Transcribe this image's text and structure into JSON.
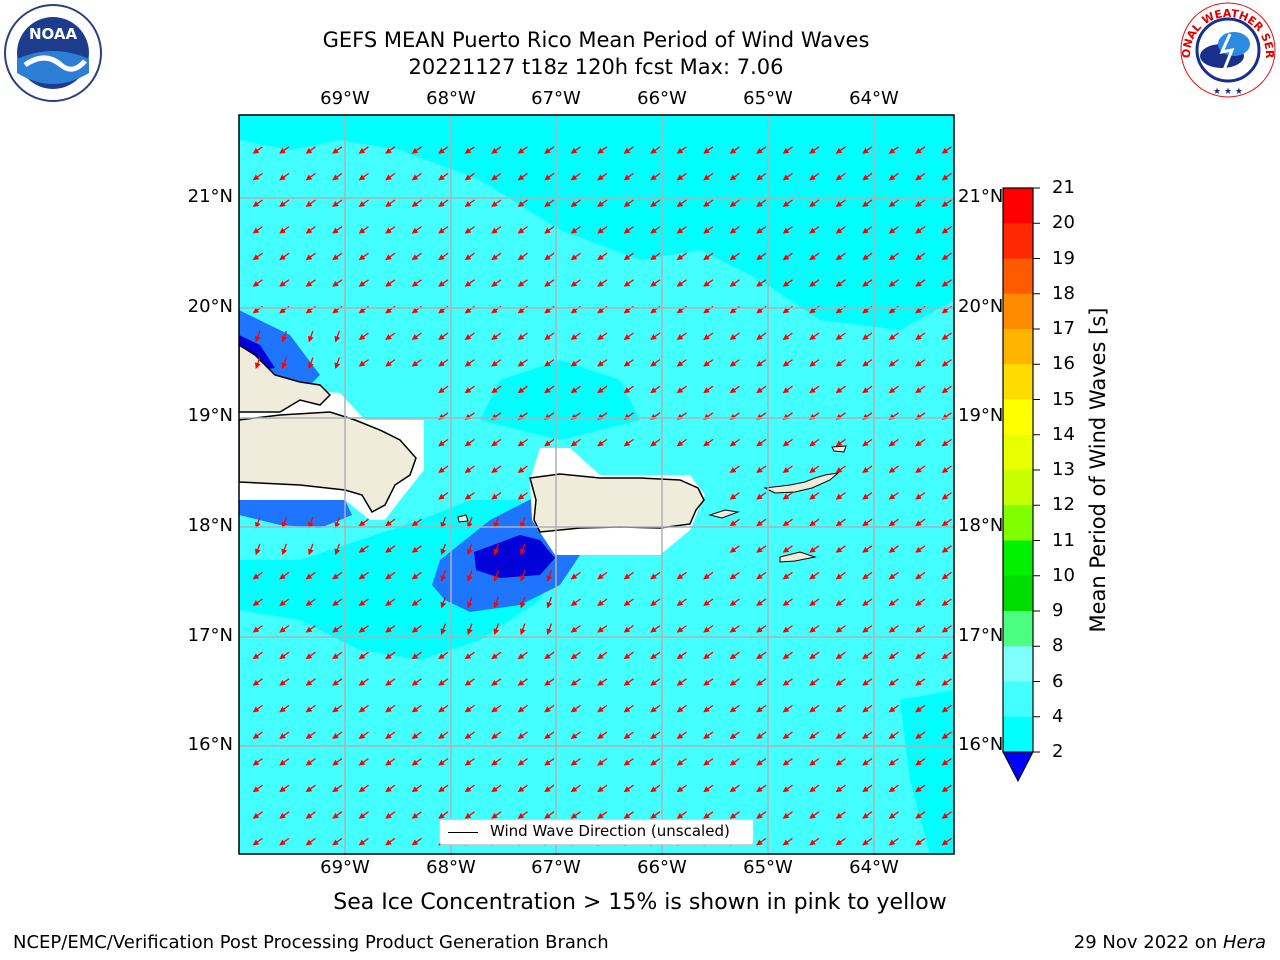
{
  "title": {
    "line1": "GEFS MEAN Puerto Rico Mean Period of Wind Waves",
    "line2": "20221127 t18z 120h fcst   Max: 7.06"
  },
  "map": {
    "lon_labels": [
      "69°W",
      "68°W",
      "67°W",
      "66°W",
      "65°W",
      "64°W"
    ],
    "lat_labels": [
      "21°N",
      "20°N",
      "19°N",
      "18°N",
      "17°N",
      "16°N"
    ],
    "arrow_color": "#ff0000",
    "land_color": "#efecdc",
    "colors": {
      "band_4_6": "#00ffff",
      "band_6_8": "#44ffff",
      "band_2_4": "#1e75ff",
      "band_below_2": "#0000d8"
    },
    "legend_label": "Wind Wave Direction (unscaled)"
  },
  "colorbar": {
    "title": "Mean Period of Wind Waves [s]",
    "ticks": [
      "21",
      "20",
      "19",
      "18",
      "17",
      "16",
      "15",
      "14",
      "13",
      "12",
      "11",
      "10",
      "9",
      "8",
      "6",
      "4",
      "2"
    ],
    "colors": [
      "#ff0000",
      "#ff2800",
      "#ff5a00",
      "#ff8c00",
      "#ffb400",
      "#ffdc00",
      "#ffff00",
      "#e8ff00",
      "#c8ff00",
      "#7fff00",
      "#00f000",
      "#00dc00",
      "#4dff80",
      "#80ffff",
      "#44ffff",
      "#00ffff",
      "#1e75ff"
    ],
    "under_color": "#0000ff"
  },
  "logos": {
    "left": "NOAA",
    "right_text": "NATIONAL WEATHER SERVICE"
  },
  "ice_note": "Sea Ice Concentration > 15% is shown in pink to yellow",
  "footer": {
    "left": "NCEP/EMC/Verification Post Processing Product Generation Branch",
    "right_date": "29 Nov 2022 on ",
    "right_machine": "Hera"
  }
}
